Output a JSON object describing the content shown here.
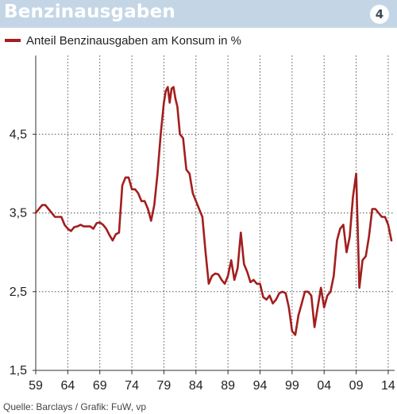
{
  "header": {
    "title": "Benzinausgaben",
    "badge": "4"
  },
  "source": "Quelle: Barclays / Grafik: FuW, vp",
  "colors": {
    "header_bg": "#c4d6e6",
    "line": "#a31e1e",
    "grid": "#555555"
  },
  "chart_data": {
    "type": "line",
    "title": "Benzinausgaben",
    "xlabel": "",
    "ylabel": "",
    "legend": "top-left",
    "grid": true,
    "xlim": [
      1959,
      2015
    ],
    "ylim": [
      1.5,
      5.5
    ],
    "x_ticks": [
      1959,
      1964,
      1969,
      1974,
      1979,
      1984,
      1989,
      1994,
      1999,
      2004,
      2009,
      2014
    ],
    "x_tick_labels": [
      "59",
      "64",
      "69",
      "74",
      "79",
      "84",
      "89",
      "94",
      "99",
      "04",
      "09",
      "14"
    ],
    "y_ticks": [
      1.5,
      2.5,
      3.5,
      4.5
    ],
    "y_tick_labels": [
      "1,5",
      "2,5",
      "3,5",
      "4,5"
    ],
    "series": [
      {
        "name": "Anteil Benzinausgaben am Konsum in %",
        "color": "#a31e1e",
        "x": [
          1959.0,
          1959.5,
          1960.0,
          1960.5,
          1961.0,
          1961.5,
          1962.0,
          1962.5,
          1963.0,
          1963.5,
          1964.0,
          1964.5,
          1965.0,
          1965.5,
          1966.0,
          1966.5,
          1967.0,
          1967.5,
          1968.0,
          1968.5,
          1969.0,
          1969.5,
          1970.0,
          1970.5,
          1971.0,
          1971.5,
          1972.0,
          1972.5,
          1973.0,
          1973.5,
          1974.0,
          1974.5,
          1975.0,
          1975.5,
          1976.0,
          1976.5,
          1977.0,
          1977.5,
          1978.0,
          1978.5,
          1979.0,
          1979.3,
          1979.6,
          1979.9,
          1980.2,
          1980.5,
          1980.8,
          1981.1,
          1981.5,
          1982.0,
          1982.5,
          1983.0,
          1983.5,
          1984.0,
          1984.5,
          1985.0,
          1985.5,
          1986.0,
          1986.5,
          1987.0,
          1987.5,
          1988.0,
          1988.5,
          1989.0,
          1989.5,
          1990.0,
          1990.5,
          1991.0,
          1991.5,
          1992.0,
          1992.5,
          1993.0,
          1993.5,
          1994.0,
          1994.5,
          1995.0,
          1995.5,
          1996.0,
          1996.5,
          1997.0,
          1997.5,
          1998.0,
          1998.5,
          1999.0,
          1999.5,
          2000.0,
          2000.5,
          2001.0,
          2001.5,
          2002.0,
          2002.5,
          2003.0,
          2003.5,
          2004.0,
          2004.5,
          2005.0,
          2005.5,
          2006.0,
          2006.5,
          2007.0,
          2007.5,
          2008.0,
          2008.5,
          2009.0,
          2009.5,
          2010.0,
          2010.5,
          2011.0,
          2011.5,
          2012.0,
          2012.5,
          2013.0,
          2013.5,
          2014.0,
          2014.5
        ],
        "values": [
          3.5,
          3.55,
          3.6,
          3.6,
          3.55,
          3.5,
          3.45,
          3.45,
          3.45,
          3.35,
          3.3,
          3.27,
          3.32,
          3.33,
          3.35,
          3.33,
          3.33,
          3.33,
          3.3,
          3.37,
          3.38,
          3.35,
          3.3,
          3.22,
          3.15,
          3.23,
          3.25,
          3.85,
          3.95,
          3.95,
          3.8,
          3.8,
          3.75,
          3.65,
          3.65,
          3.55,
          3.4,
          3.6,
          4.0,
          4.5,
          4.9,
          5.05,
          5.1,
          4.9,
          5.08,
          5.1,
          4.95,
          4.85,
          4.5,
          4.45,
          4.05,
          4.0,
          3.75,
          3.65,
          3.55,
          3.45,
          3.0,
          2.6,
          2.7,
          2.73,
          2.72,
          2.65,
          2.6,
          2.7,
          2.9,
          2.65,
          2.8,
          3.25,
          2.85,
          2.75,
          2.62,
          2.65,
          2.6,
          2.6,
          2.43,
          2.4,
          2.45,
          2.35,
          2.4,
          2.48,
          2.5,
          2.48,
          2.3,
          2.0,
          1.95,
          2.2,
          2.35,
          2.5,
          2.5,
          2.45,
          2.05,
          2.3,
          2.55,
          2.3,
          2.45,
          2.5,
          2.7,
          3.15,
          3.3,
          3.35,
          3.0,
          3.2,
          3.7,
          4.0,
          2.55,
          2.9,
          2.95,
          3.2,
          3.55,
          3.55,
          3.5,
          3.45,
          3.45,
          3.35,
          3.15
        ]
      }
    ]
  }
}
